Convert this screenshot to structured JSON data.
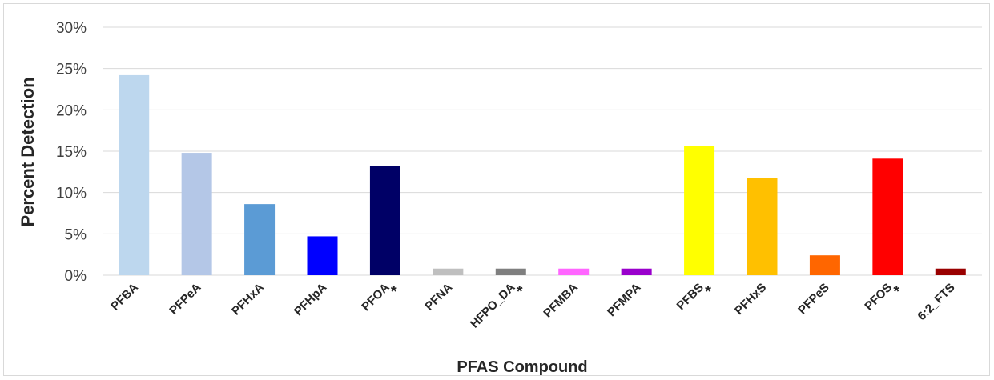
{
  "chart_data": {
    "type": "bar",
    "title": "",
    "xlabel": "PFAS Compound",
    "ylabel": "Percent Detection",
    "ylim": [
      0,
      30
    ],
    "y_ticks": [
      "0%",
      "5%",
      "10%",
      "15%",
      "20%",
      "25%",
      "30%"
    ],
    "grid": true,
    "legend": "none",
    "categories": [
      "PFBA",
      "PFPeA",
      "PFHxA",
      "PFHpA",
      "PFOA",
      "PFNA",
      "HFPO_DA",
      "PFMBA",
      "PFMPA",
      "PFBS",
      "PFHxS",
      "PFPeS",
      "PFOS",
      "6:2_FTS"
    ],
    "values": [
      24.2,
      14.8,
      8.6,
      4.7,
      13.2,
      0.8,
      0.8,
      0.8,
      0.8,
      15.6,
      11.8,
      2.4,
      14.1,
      0.8
    ],
    "colors": [
      "#bdd7ee",
      "#b4c7e7",
      "#5b9bd5",
      "#0000ff",
      "#000066",
      "#bfbfbf",
      "#7f7f7f",
      "#ff66ff",
      "#9900cc",
      "#ffff00",
      "#ffc000",
      "#ff6600",
      "#ff0000",
      "#990000"
    ],
    "annotation_marker": "*",
    "annotated_categories": [
      "PFOA",
      "HFPO_DA",
      "PFBS",
      "PFOS"
    ]
  }
}
